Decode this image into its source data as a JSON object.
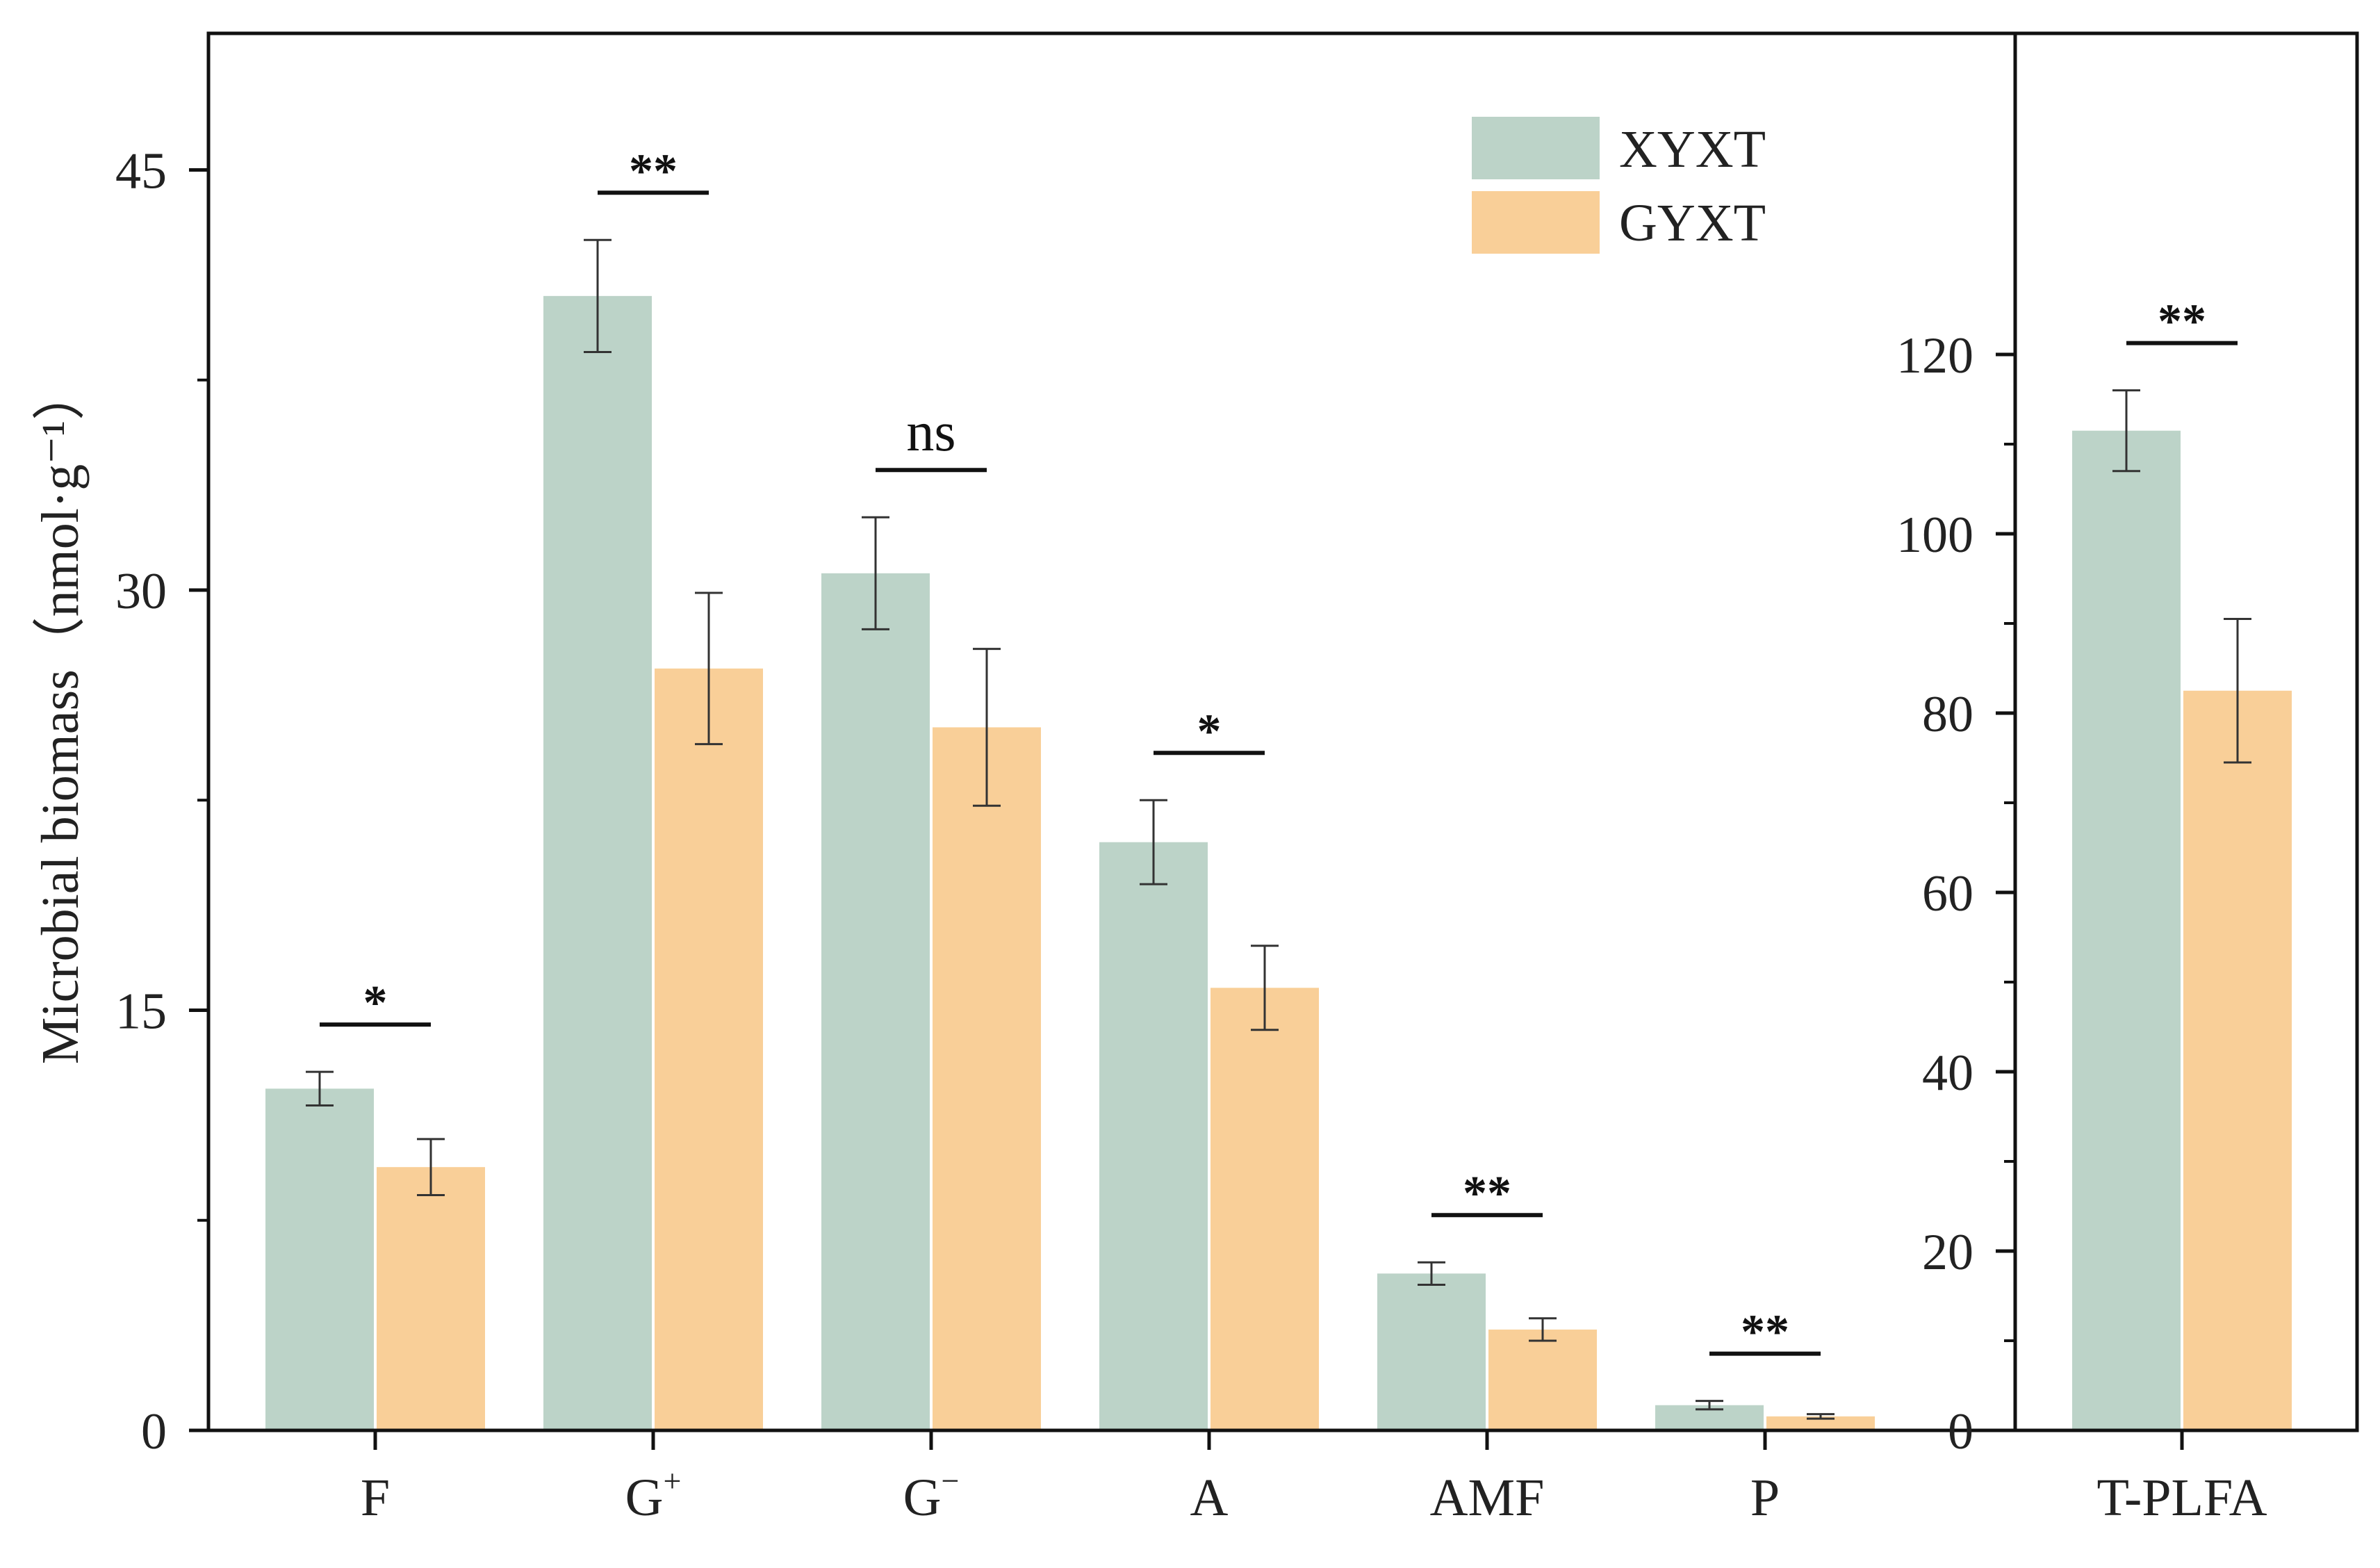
{
  "chart_data": [
    {
      "type": "bar",
      "panel": "left",
      "categories": [
        {
          "name": "F",
          "sup": ""
        },
        {
          "name": "G",
          "sup": "+"
        },
        {
          "name": "G",
          "sup": "−"
        },
        {
          "name": "A",
          "sup": ""
        },
        {
          "name": "AMF",
          "sup": ""
        },
        {
          "name": "P",
          "sup": ""
        }
      ],
      "series": [
        {
          "name": "XYXT",
          "color": "#bcd3c8",
          "values": [
            12.2,
            40.5,
            30.6,
            21.0,
            5.6,
            0.9
          ],
          "errors": [
            0.6,
            2.0,
            2.0,
            1.5,
            0.4,
            0.15
          ]
        },
        {
          "name": "GYXT",
          "color": "#f9cf98",
          "values": [
            9.4,
            27.2,
            25.1,
            15.8,
            3.6,
            0.5
          ],
          "errors": [
            1.0,
            2.7,
            2.8,
            1.5,
            0.4,
            0.08
          ]
        }
      ],
      "significance": [
        "*",
        "**",
        "ns",
        "*",
        "**",
        "**"
      ],
      "ylabel": "Microbial biomass（nmol·g⁻¹）",
      "ylim": [
        0,
        50
      ],
      "yticks": [
        "0",
        "15",
        "30",
        "45"
      ],
      "grid": false
    },
    {
      "type": "bar",
      "panel": "right",
      "categories": [
        {
          "name": "T-PLFA",
          "sup": ""
        }
      ],
      "series": [
        {
          "name": "XYXT",
          "color": "#bcd3c8",
          "values": [
            111.5
          ],
          "errors": [
            4.5
          ]
        },
        {
          "name": "GYXT",
          "color": "#f9cf98",
          "values": [
            82.5
          ],
          "errors": [
            8.0
          ]
        }
      ],
      "significance": [
        "**"
      ],
      "ylim": [
        0,
        130
      ],
      "yticks": [
        "0",
        "20",
        "40",
        "60",
        "80",
        "100",
        "120"
      ],
      "grid": false
    }
  ],
  "legend": {
    "placement": "top-right",
    "items": [
      {
        "label": "XYXT",
        "color": "#bcd3c8"
      },
      {
        "label": "GYXT",
        "color": "#f9cf98"
      }
    ]
  }
}
